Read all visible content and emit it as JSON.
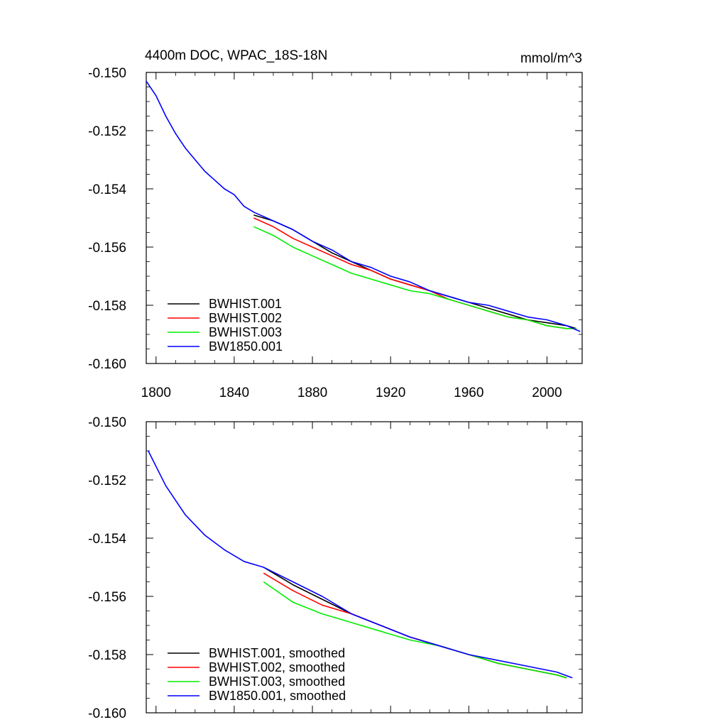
{
  "header": {
    "title": "4400m DOC, WPAC_18S-18N",
    "units": "mmol/m^3"
  },
  "chart_data": [
    {
      "type": "line",
      "panel": "top",
      "title": "4400m DOC, WPAC_18S-18N",
      "units": "mmol/m^3",
      "xlim": [
        1795,
        2018
      ],
      "ylim": [
        -0.16,
        -0.15
      ],
      "x_ticks": [
        "1800",
        "1840",
        "1880",
        "1920",
        "1960",
        "2000"
      ],
      "y_ticks": [
        "-0.150",
        "-0.152",
        "-0.154",
        "-0.156",
        "-0.158",
        "-0.160"
      ],
      "legend_position": "bottom-left",
      "legend": [
        "BWHIST.001",
        "BWHIST.002",
        "BWHIST.003",
        "BW1850.001"
      ],
      "series": [
        {
          "name": "BWHIST.001",
          "color": "#000000",
          "x": [
            1850,
            1860,
            1870,
            1880,
            1890,
            1900,
            1910,
            1920,
            1930,
            1940,
            1950,
            1960,
            1970,
            1980,
            1990,
            2000,
            2010,
            2015
          ],
          "y": [
            -0.1549,
            -0.1551,
            -0.1554,
            -0.1558,
            -0.1562,
            -0.1565,
            -0.1568,
            -0.1571,
            -0.1573,
            -0.1575,
            -0.1577,
            -0.1579,
            -0.1581,
            -0.1583,
            -0.1585,
            -0.1586,
            -0.1587,
            -0.1588
          ]
        },
        {
          "name": "BWHIST.002",
          "color": "#ff0000",
          "x": [
            1850,
            1860,
            1870,
            1880,
            1890,
            1900,
            1910,
            1920,
            1930,
            1940,
            1950,
            1960,
            1970,
            1980,
            1990,
            2000,
            2010,
            2015
          ],
          "y": [
            -0.155,
            -0.1553,
            -0.1557,
            -0.156,
            -0.1563,
            -0.1566,
            -0.1568,
            -0.1571,
            -0.1573,
            -0.1575,
            -0.1578,
            -0.158,
            -0.1582,
            -0.1584,
            -0.1585,
            -0.1587,
            -0.1588,
            -0.1588
          ]
        },
        {
          "name": "BWHIST.003",
          "color": "#00ee00",
          "x": [
            1850,
            1860,
            1870,
            1880,
            1890,
            1900,
            1910,
            1920,
            1930,
            1940,
            1950,
            1960,
            1970,
            1980,
            1990,
            2000,
            2010,
            2015
          ],
          "y": [
            -0.1553,
            -0.1556,
            -0.156,
            -0.1563,
            -0.1566,
            -0.1569,
            -0.1571,
            -0.1573,
            -0.1575,
            -0.1576,
            -0.1578,
            -0.158,
            -0.1582,
            -0.1584,
            -0.1585,
            -0.1587,
            -0.1588,
            -0.1588
          ]
        },
        {
          "name": "BW1850.001",
          "color": "#0000ff",
          "x": [
            1795,
            1800,
            1805,
            1810,
            1815,
            1820,
            1825,
            1830,
            1835,
            1840,
            1845,
            1850,
            1860,
            1870,
            1880,
            1890,
            1900,
            1910,
            1920,
            1930,
            1940,
            1950,
            1960,
            1970,
            1980,
            1990,
            2000,
            2010,
            2017
          ],
          "y": [
            -0.1503,
            -0.1508,
            -0.1515,
            -0.1521,
            -0.1526,
            -0.153,
            -0.1534,
            -0.1537,
            -0.154,
            -0.1542,
            -0.1546,
            -0.1548,
            -0.1551,
            -0.1554,
            -0.1558,
            -0.1561,
            -0.1565,
            -0.1567,
            -0.157,
            -0.1572,
            -0.1575,
            -0.1577,
            -0.1579,
            -0.158,
            -0.1582,
            -0.1584,
            -0.1585,
            -0.1587,
            -0.1589
          ]
        }
      ]
    },
    {
      "type": "line",
      "panel": "bottom",
      "xlim": [
        1795,
        2018
      ],
      "ylim": [
        -0.16,
        -0.15
      ],
      "y_ticks": [
        "-0.150",
        "-0.152",
        "-0.154",
        "-0.156",
        "-0.158",
        "-0.160"
      ],
      "legend_position": "bottom-left",
      "legend": [
        "BWHIST.001, smoothed",
        "BWHIST.002, smoothed",
        "BWHIST.003, smoothed",
        "BW1850.001, smoothed"
      ],
      "series": [
        {
          "name": "BWHIST.001, smoothed",
          "color": "#000000",
          "x": [
            1855,
            1870,
            1885,
            1900,
            1915,
            1930,
            1945,
            1960,
            1975,
            1990,
            2005,
            2010
          ],
          "y": [
            -0.155,
            -0.1556,
            -0.1561,
            -0.1566,
            -0.157,
            -0.1574,
            -0.1577,
            -0.158,
            -0.1583,
            -0.1585,
            -0.1587,
            -0.1588
          ]
        },
        {
          "name": "BWHIST.002, smoothed",
          "color": "#ff0000",
          "x": [
            1855,
            1870,
            1885,
            1900,
            1915,
            1930,
            1945,
            1960,
            1975,
            1990,
            2005,
            2010
          ],
          "y": [
            -0.1552,
            -0.1558,
            -0.1563,
            -0.1566,
            -0.157,
            -0.1574,
            -0.1577,
            -0.158,
            -0.1583,
            -0.1585,
            -0.1587,
            -0.1588
          ]
        },
        {
          "name": "BWHIST.003, smoothed",
          "color": "#00ee00",
          "x": [
            1855,
            1870,
            1885,
            1900,
            1915,
            1930,
            1945,
            1960,
            1975,
            1990,
            2005,
            2010
          ],
          "y": [
            -0.1555,
            -0.1562,
            -0.1566,
            -0.1569,
            -0.1572,
            -0.1575,
            -0.1577,
            -0.158,
            -0.1583,
            -0.1585,
            -0.1587,
            -0.1588
          ]
        },
        {
          "name": "BW1850.001, smoothed",
          "color": "#0000ff",
          "x": [
            1796,
            1805,
            1815,
            1825,
            1835,
            1845,
            1855,
            1870,
            1885,
            1900,
            1915,
            1930,
            1945,
            1960,
            1975,
            1990,
            2005,
            2013
          ],
          "y": [
            -0.151,
            -0.1522,
            -0.1532,
            -0.1539,
            -0.1544,
            -0.1548,
            -0.155,
            -0.1555,
            -0.156,
            -0.1566,
            -0.157,
            -0.1574,
            -0.1577,
            -0.158,
            -0.1582,
            -0.1584,
            -0.1586,
            -0.1588
          ]
        }
      ]
    }
  ]
}
